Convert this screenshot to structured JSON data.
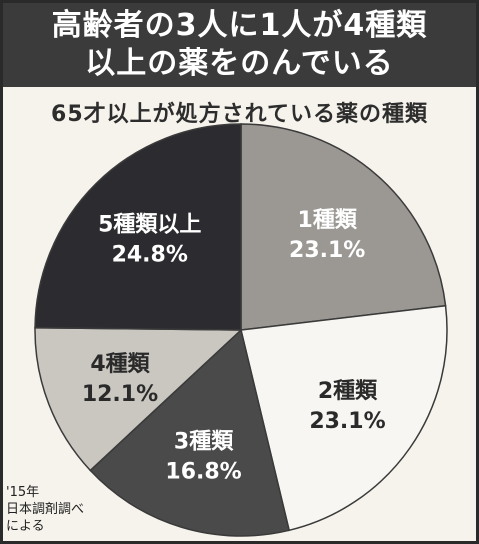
{
  "headline": {
    "line1": "高齢者の3人に1人が4種類",
    "line2": "以上の薬をのんでいる"
  },
  "source": {
    "line1": "'15年",
    "line2": "日本調剤調べ",
    "line3": "による"
  },
  "chart_data": {
    "type": "pie",
    "title": "65才以上が処方されている薬の種類",
    "start": "12 o'clock, clockwise",
    "slices": [
      {
        "label": "1種類",
        "value": 23.1,
        "value_label": "23.1%",
        "color": "#9b9894",
        "text_color": "#ffffff"
      },
      {
        "label": "2種類",
        "value": 23.1,
        "value_label": "23.1%",
        "color": "#f7f6f2",
        "text_color": "#2a2a2a"
      },
      {
        "label": "3種類",
        "value": 16.8,
        "value_label": "16.8%",
        "color": "#4a4a4a",
        "text_color": "#ffffff"
      },
      {
        "label": "4種類",
        "value": 12.1,
        "value_label": "12.1%",
        "color": "#cac7c1",
        "text_color": "#2a2a2a"
      },
      {
        "label": "5種類以上",
        "value": 24.8,
        "value_label": "24.8%",
        "color": "#2c2c30",
        "text_color": "#ffffff"
      }
    ]
  }
}
